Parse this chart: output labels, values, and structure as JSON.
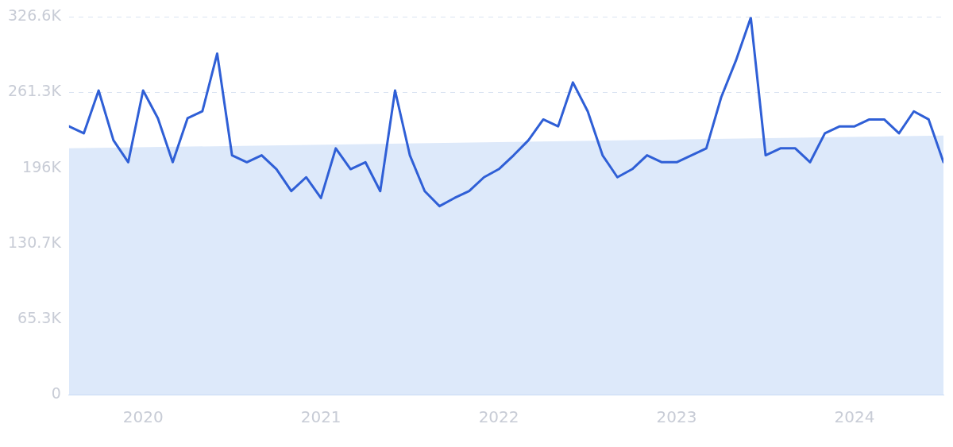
{
  "chart_data": {
    "type": "line",
    "x": [
      "2019-08",
      "2019-09",
      "2019-10",
      "2019-11",
      "2019-12",
      "2020-01",
      "2020-02",
      "2020-03",
      "2020-04",
      "2020-05",
      "2020-06",
      "2020-07",
      "2020-08",
      "2020-09",
      "2020-10",
      "2020-11",
      "2020-12",
      "2021-01",
      "2021-02",
      "2021-03",
      "2021-04",
      "2021-05",
      "2021-06",
      "2021-07",
      "2021-08",
      "2021-09",
      "2021-10",
      "2021-11",
      "2021-12",
      "2022-01",
      "2022-02",
      "2022-03",
      "2022-04",
      "2022-05",
      "2022-06",
      "2022-07",
      "2022-08",
      "2022-09",
      "2022-10",
      "2022-11",
      "2022-12",
      "2023-01",
      "2023-02",
      "2023-03",
      "2023-04",
      "2023-05",
      "2023-06",
      "2023-07",
      "2023-08",
      "2023-09",
      "2023-10",
      "2023-11",
      "2023-12",
      "2024-01",
      "2024-02",
      "2024-03",
      "2024-04",
      "2024-05",
      "2024-06",
      "2024-07"
    ],
    "series": [
      {
        "type": "area",
        "color": "#dde9fa",
        "x": [
          "2019-08",
          "2024-07"
        ],
        "values": [
          213000,
          224000
        ]
      },
      {
        "color": "#2f5fd6",
        "values": [
          232000,
          226000,
          263000,
          220000,
          201000,
          263000,
          239000,
          201000,
          239000,
          245000,
          295000,
          207000,
          201000,
          207000,
          195000,
          176000,
          188000,
          170000,
          213000,
          195000,
          201000,
          176000,
          263000,
          207000,
          176000,
          163000,
          170000,
          176000,
          188000,
          195000,
          207000,
          220000,
          238000,
          232000,
          270000,
          245000,
          207000,
          188000,
          195000,
          207000,
          201000,
          201000,
          207000,
          213000,
          257000,
          289000,
          326000,
          207000,
          213000,
          213000,
          201000,
          226000,
          232000,
          232000,
          238000,
          238000,
          226000,
          245000,
          238000,
          201000
        ]
      }
    ],
    "xlim": [
      "2019-08",
      "2024-07"
    ],
    "xticks": [
      {
        "value": "2020-01",
        "label": "2020"
      },
      {
        "value": "2021-01",
        "label": "2021"
      },
      {
        "value": "2022-01",
        "label": "2022"
      },
      {
        "value": "2023-01",
        "label": "2023"
      },
      {
        "value": "2024-01",
        "label": "2024"
      }
    ],
    "ylim": [
      0,
      326600
    ],
    "yticks": [
      0,
      {
        "value": 65300,
        "label": "65.3K"
      },
      {
        "value": 130700,
        "label": "130.7K"
      },
      {
        "value": 196000,
        "label": "196K"
      },
      {
        "value": 261300,
        "label": "261.3K"
      },
      {
        "value": 326600,
        "label": "326.6K"
      }
    ],
    "grid": "y",
    "legend": false,
    "marker": "none",
    "line_style": "solid"
  }
}
